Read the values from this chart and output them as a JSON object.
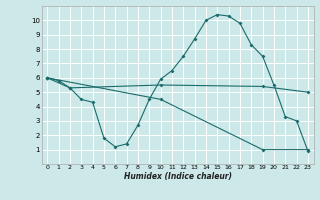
{
  "xlabel": "Humidex (Indice chaleur)",
  "bg_color": "#cce8e8",
  "line_color": "#1a6b6b",
  "grid_color": "#ffffff",
  "xlim": [
    -0.5,
    23.5
  ],
  "ylim": [
    0,
    11
  ],
  "xticks": [
    0,
    1,
    2,
    3,
    4,
    5,
    6,
    7,
    8,
    9,
    10,
    11,
    12,
    13,
    14,
    15,
    16,
    17,
    18,
    19,
    20,
    21,
    22,
    23
  ],
  "yticks": [
    1,
    2,
    3,
    4,
    5,
    6,
    7,
    8,
    9,
    10
  ],
  "line1_x": [
    0,
    1,
    2,
    3,
    4,
    5,
    6,
    7,
    8,
    9,
    10,
    11,
    12,
    13,
    14,
    15,
    16,
    17,
    18,
    19,
    20,
    21,
    22,
    23
  ],
  "line1_y": [
    6.0,
    5.8,
    5.3,
    4.5,
    4.3,
    1.8,
    1.2,
    1.4,
    2.7,
    4.5,
    5.9,
    6.5,
    7.5,
    8.7,
    10.0,
    10.4,
    10.3,
    9.8,
    8.3,
    7.5,
    5.5,
    3.3,
    3.0,
    0.9
  ],
  "line2_x": [
    0,
    2,
    10,
    19,
    23
  ],
  "line2_y": [
    6.0,
    5.3,
    5.5,
    5.4,
    5.0
  ],
  "line3_x": [
    0,
    10,
    19,
    23
  ],
  "line3_y": [
    6.0,
    4.5,
    1.0,
    1.0
  ]
}
